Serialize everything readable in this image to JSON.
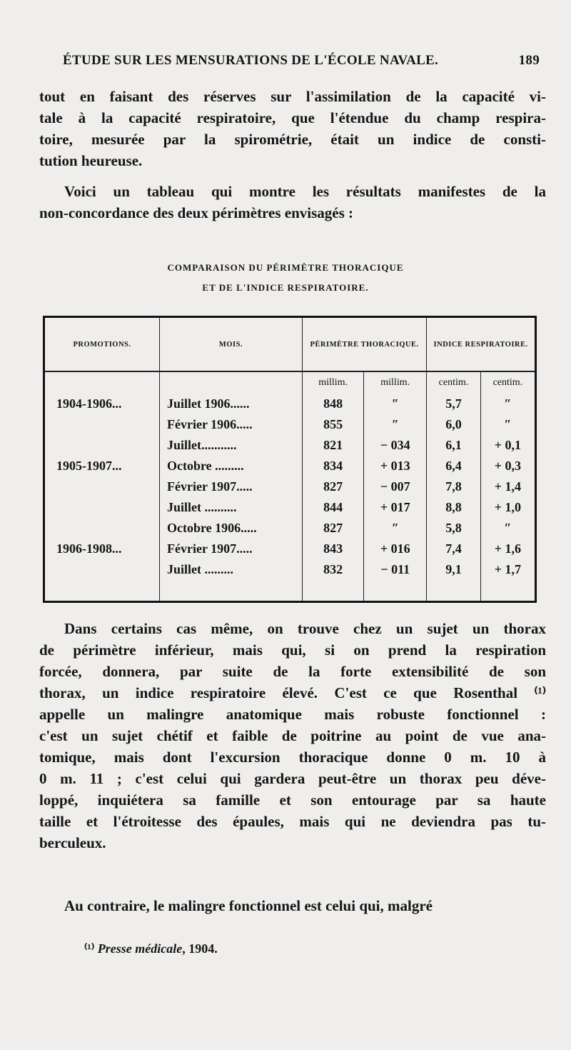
{
  "header": {
    "title": "ÉTUDE SUR LES MENSURATIONS DE L'ÉCOLE NAVALE.",
    "page": "189"
  },
  "para1": [
    "tout en faisant des réserves sur l'assimilation de la capacité vi-",
    "tale à la capacité respiratoire, que l'étendue du champ respira-",
    "toire, mesurée par la spirométrie, était un indice de consti-",
    "tution heureuse."
  ],
  "para2": [
    "Voici un tableau qui montre les résultats manifestes de la",
    "non-concordance des deux périmètres envisagés :"
  ],
  "caption": [
    "COMPARAISON DU PÉRIMÈTRE THORACIQUE",
    "ET DE L'INDICE RESPIRATOIRE."
  ],
  "table": {
    "headers": [
      "PROMOTIONS.",
      "MOIS.",
      "PÉRIMÈTRE THORACIQUE.",
      "INDICE RESPIRATOIRE."
    ],
    "units": [
      "millim.",
      "millim.",
      "centim.",
      "centim."
    ],
    "rows": [
      [
        "1904-1906...",
        "Juillet 1906......",
        "848",
        "″",
        "5,7",
        "″"
      ],
      [
        "",
        "Février 1906.....",
        "855",
        "″",
        "6,0",
        "″"
      ],
      [
        "",
        "Juillet...........",
        "821",
        "− 034",
        "6,1",
        "+ 0,1"
      ],
      [
        "1905-1907...",
        "Octobre .........",
        "834",
        "+ 013",
        "6,4",
        "+ 0,3"
      ],
      [
        "",
        "Février 1907.....",
        "827",
        "− 007",
        "7,8",
        "+ 1,4"
      ],
      [
        "",
        "Juillet ..........",
        "844",
        "+ 017",
        "8,8",
        "+ 1,0"
      ],
      [
        "",
        "Octobre 1906.....",
        "827",
        "″",
        "5,8",
        "″"
      ],
      [
        "1906-1908...",
        "Février 1907.....",
        "843",
        "+ 016",
        "7,4",
        "+ 1,6"
      ],
      [
        "",
        "Juillet .........",
        "832",
        "− 011",
        "9,1",
        "+ 1,7"
      ]
    ]
  },
  "para3": [
    "Dans certains cas même, on trouve chez un sujet un thorax",
    "de périmètre inférieur, mais qui, si on prend la respiration",
    "forcée, donnera, par suite de la forte extensibilité de son",
    "thorax, un indice respiratoire élevé. C'est ce que Rosenthal ⁽¹⁾",
    "appelle un malingre anatomique mais robuste fonctionnel :",
    "c'est un sujet chétif et faible de poitrine au point de vue ana-",
    "tomique, mais dont l'excursion thoracique donne 0 m. 10 à",
    "0 m. 11 ; c'est celui qui gardera peut-être un thorax peu déve-",
    "loppé, inquiétera sa famille et son entourage par sa haute",
    "taille et l'étroitesse des épaules, mais qui ne deviendra pas tu-",
    "berculeux."
  ],
  "para4": [
    "Au contraire, le malingre fonctionnel est celui qui, malgré"
  ],
  "footnote": {
    "mark": "⁽¹⁾",
    "source": "Presse médicale",
    "year": ", 1904."
  }
}
